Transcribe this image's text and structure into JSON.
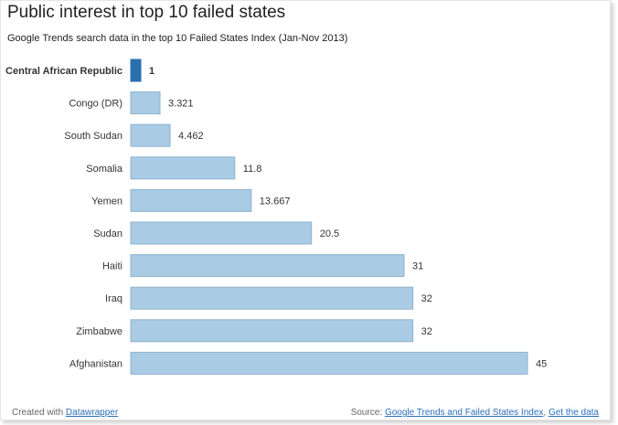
{
  "header": {
    "title": "Public interest in top 10 failed states",
    "subtitle": "Google Trends search data in the top 10 Failed States Index (Jan-Nov 2013)"
  },
  "footer": {
    "created_with": "Created with",
    "created_with_link": "Datawrapper",
    "source_label": "Source:",
    "source_link": "Google Trends and Failed States Index",
    "separator": ",",
    "get_data_link": "Get the data"
  },
  "colors": {
    "bar": "#a9cbe3",
    "bar_stroke": "#8fb3cf",
    "highlight_bar": "#2a6fae",
    "label_text": "#333333"
  },
  "chart_data": {
    "type": "bar",
    "orientation": "horizontal",
    "title": "Public interest in top 10 failed states",
    "categories": [
      "Central African Republic",
      "Congo (DR)",
      "South Sudan",
      "Somalia",
      "Yemen",
      "Sudan",
      "Haiti",
      "Iraq",
      "Zimbabwe",
      "Afghanistan"
    ],
    "values": [
      1,
      3.321,
      4.462,
      11.8,
      13.667,
      20.5,
      31,
      32,
      32,
      45
    ],
    "value_labels": [
      "1",
      "3.321",
      "4.462",
      "11.8",
      "13.667",
      "20.5",
      "31",
      "32",
      "32",
      "45"
    ],
    "highlighted": [
      "Central African Republic"
    ],
    "xlim": [
      0,
      45
    ],
    "xlabel": "",
    "ylabel": ""
  }
}
